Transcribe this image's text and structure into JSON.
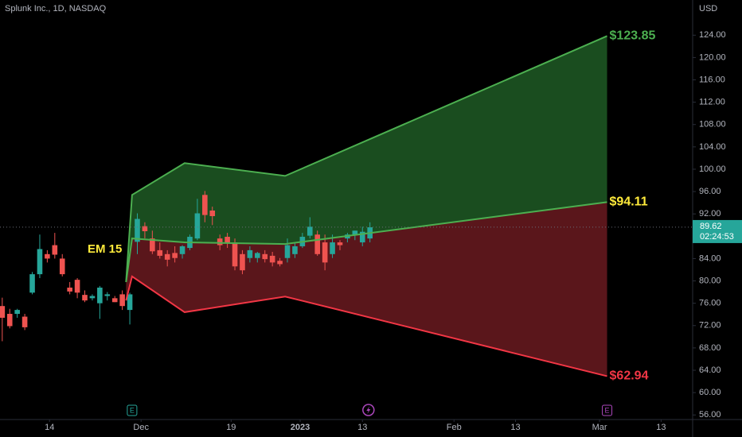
{
  "header": {
    "title": "Splunk Inc., 1D, NASDAQ",
    "currency": "USD"
  },
  "chart_data": {
    "type": "candlestick",
    "x": [
      0,
      1,
      2,
      3,
      4,
      5,
      6,
      7,
      8,
      9,
      10,
      11,
      12,
      13,
      14,
      15,
      16,
      17,
      18,
      19,
      20,
      21,
      22,
      23,
      24,
      25,
      26,
      27,
      28,
      29,
      30,
      31,
      32,
      33,
      34,
      35,
      36,
      37,
      38,
      39,
      40,
      41,
      42,
      43,
      44,
      45,
      46,
      47,
      48,
      49
    ],
    "open": [
      75.5,
      74.1,
      74.1,
      73.6,
      77.9,
      81.2,
      84.8,
      86.4,
      84.0,
      78.8,
      80.2,
      77.5,
      76.9,
      76.0,
      77.3,
      76.9,
      77.6,
      74.8,
      87.0,
      89.8,
      87.6,
      85.5,
      84.8,
      85.0,
      84.8,
      85.9,
      87.6,
      95.4,
      92.6,
      87.6,
      87.9,
      86.9,
      84.8,
      84.1,
      84.1,
      84.8,
      84.5,
      83.6,
      84.1,
      84.8,
      86.2,
      88.1,
      88.3,
      86.9,
      84.8,
      86.9,
      87.6,
      88.3,
      86.9,
      87.6
    ],
    "high": [
      77.0,
      75.0,
      75.0,
      74.1,
      81.6,
      88.3,
      85.5,
      88.6,
      84.8,
      79.8,
      80.5,
      78.3,
      77.6,
      79.1,
      78.0,
      77.3,
      78.3,
      77.9,
      92.1,
      90.5,
      89.0,
      86.9,
      85.5,
      86.2,
      86.4,
      88.3,
      94.7,
      96.1,
      93.3,
      88.3,
      88.6,
      87.6,
      85.5,
      86.2,
      85.2,
      85.5,
      85.2,
      84.1,
      87.6,
      86.9,
      88.6,
      91.4,
      89.0,
      88.3,
      88.3,
      87.3,
      88.6,
      89.0,
      89.7,
      90.5
    ],
    "low": [
      69.2,
      71.5,
      73.4,
      71.2,
      77.6,
      80.5,
      83.3,
      84.0,
      80.8,
      77.6,
      76.9,
      76.2,
      76.5,
      73.2,
      76.5,
      76.2,
      74.8,
      72.2,
      84.8,
      87.6,
      84.8,
      84.0,
      82.6,
      83.3,
      84.0,
      85.5,
      87.3,
      90.5,
      90.0,
      85.5,
      85.9,
      81.9,
      81.2,
      83.3,
      83.3,
      83.3,
      82.6,
      82.6,
      83.3,
      84.1,
      85.9,
      87.6,
      84.5,
      81.9,
      84.1,
      85.5,
      86.9,
      87.3,
      86.2,
      86.9
    ],
    "close": [
      73.4,
      71.9,
      74.8,
      71.7,
      81.2,
      85.7,
      84.0,
      84.7,
      81.2,
      78.1,
      77.9,
      76.5,
      77.3,
      78.8,
      77.6,
      76.2,
      75.5,
      77.6,
      91.1,
      88.9,
      85.3,
      84.5,
      83.8,
      84.1,
      86.2,
      87.9,
      92.1,
      91.8,
      91.6,
      86.4,
      86.9,
      82.6,
      81.9,
      85.5,
      85.0,
      83.9,
      83.3,
      83.0,
      86.4,
      86.2,
      87.9,
      89.7,
      84.8,
      83.3,
      86.9,
      86.4,
      88.3,
      89.0,
      88.8,
      89.6
    ],
    "up_color": "#26a69a",
    "down_color": "#ef5350",
    "xlim": [
      -0.3,
      92
    ],
    "xticks": [
      {
        "value": 6.3,
        "label": "14"
      },
      {
        "value": 18.5,
        "label": "Dec"
      },
      {
        "value": 30.5,
        "label": "19"
      },
      {
        "value": 39.7,
        "label": "2023"
      },
      {
        "value": 48.0,
        "label": "13"
      },
      {
        "value": 60.2,
        "label": "Feb"
      },
      {
        "value": 68.4,
        "label": "13"
      },
      {
        "value": 79.6,
        "label": "Mar"
      },
      {
        "value": 87.8,
        "label": "13"
      }
    ],
    "ylim": [
      53.9,
      130.3
    ],
    "yticks": [
      {
        "value": 56,
        "label": "56.00"
      },
      {
        "value": 60,
        "label": "60.00"
      },
      {
        "value": 64,
        "label": "64.00"
      },
      {
        "value": 68,
        "label": "68.00"
      },
      {
        "value": 72,
        "label": "72.00"
      },
      {
        "value": 76,
        "label": "76.00"
      },
      {
        "value": 80,
        "label": "80.00"
      },
      {
        "value": 84,
        "label": "84.00"
      },
      {
        "value": 88,
        "label": "88.00"
      },
      {
        "value": 92,
        "label": "92.00"
      },
      {
        "value": 96,
        "label": "96.00"
      },
      {
        "value": 100,
        "label": "100.00"
      },
      {
        "value": 104,
        "label": "104.00"
      },
      {
        "value": 108,
        "label": "108.00"
      },
      {
        "value": 112,
        "label": "112.00"
      },
      {
        "value": 116,
        "label": "116.00"
      },
      {
        "value": 120,
        "label": "120.00"
      },
      {
        "value": 124,
        "label": "124.00"
      }
    ],
    "last_price": {
      "value": 89.62,
      "label": "89.62",
      "countdown": "02:24:53",
      "color": "#26a69a"
    },
    "expected_move": {
      "label": "EM 15",
      "label_color": "#ffeb3b",
      "x": [
        16.5,
        17.3,
        24.3,
        37.7,
        80.6
      ],
      "upper": {
        "values": [
          79.8,
          95.4,
          101.1,
          98.8,
          123.85
        ],
        "value_label": "$123.85",
        "color": "#4caf50",
        "fill": "#1e5a24"
      },
      "middle": {
        "values": [
          79.8,
          87.6,
          86.9,
          86.6,
          94.11
        ],
        "value_label": "$94.11",
        "color": "#ffeb3b"
      },
      "lower": {
        "values": [
          76.5,
          80.8,
          74.4,
          77.2,
          62.94
        ],
        "value_label": "$62.94",
        "color": "#f23645",
        "fill": "#6a1a20"
      }
    },
    "events": [
      {
        "x": 17.3,
        "label": "E",
        "color": "#26a69a"
      },
      {
        "x": 48.8,
        "color": "#ab47bc"
      },
      {
        "x": 80.6,
        "label": "E",
        "color": "#ab47bc"
      }
    ]
  }
}
